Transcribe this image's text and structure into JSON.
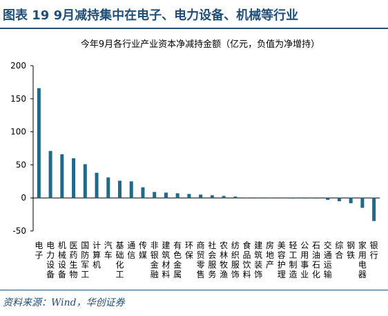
{
  "heading": "图表 19   9月减持集中在电子、电力设备、机械等行业",
  "source": "资料来源：Wind，华创证券",
  "colors": {
    "bar": "#1f6a8a",
    "heading": "#1f4e79",
    "axis": "#000000"
  },
  "chart_data": {
    "type": "bar",
    "title": "今年9月各行业产业资本净减持金额（亿元，负值为净增持）",
    "xlabel": "",
    "ylabel": "",
    "ylim": [
      -50,
      200
    ],
    "yticks": [
      200,
      150,
      100,
      50,
      0,
      -50
    ],
    "grid": false,
    "legend": "none",
    "categories": [
      "电子",
      "电力设备",
      "机械设备",
      "医药生物",
      "国防军工",
      "计算机",
      "汽车",
      "基础化工",
      "通信",
      "传媒",
      "非银金融",
      "建筑材料",
      "有色金属",
      "环保",
      "商贸零售",
      "社会服务",
      "农林牧渔",
      "纺织服饰",
      "食品饮料",
      "建筑装饰",
      "房地产",
      "美容护理",
      "轻工制造",
      "公用事业",
      "石油石化",
      "交通运输",
      "综合",
      "钢铁",
      "家用电器",
      "银行"
    ],
    "values": [
      166,
      71,
      66,
      60,
      51,
      38,
      31,
      26,
      25,
      16,
      9,
      8,
      7,
      6,
      5,
      4,
      3,
      2,
      0,
      0,
      0,
      0,
      -1,
      -1,
      -1,
      -3,
      -5,
      -8,
      -15,
      -35
    ]
  }
}
